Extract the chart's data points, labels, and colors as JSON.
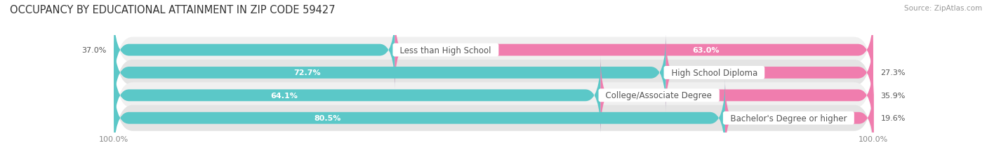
{
  "title": "OCCUPANCY BY EDUCATIONAL ATTAINMENT IN ZIP CODE 59427",
  "source": "Source: ZipAtlas.com",
  "categories": [
    "Less than High School",
    "High School Diploma",
    "College/Associate Degree",
    "Bachelor's Degree or higher"
  ],
  "owner_pct": [
    37.0,
    72.7,
    64.1,
    80.5
  ],
  "renter_pct": [
    63.0,
    27.3,
    35.9,
    19.6
  ],
  "owner_color": "#5BC8C8",
  "renter_color": "#F07DAE",
  "row_bg_light": "#F0F0F0",
  "row_bg_dark": "#E4E4E4",
  "title_fontsize": 10.5,
  "label_fontsize": 8.5,
  "value_fontsize": 8.0,
  "legend_fontsize": 8.5,
  "axis_label_fontsize": 8.0,
  "background_color": "#FFFFFF",
  "text_dark": "#555555",
  "text_white": "#FFFFFF",
  "source_color": "#999999"
}
